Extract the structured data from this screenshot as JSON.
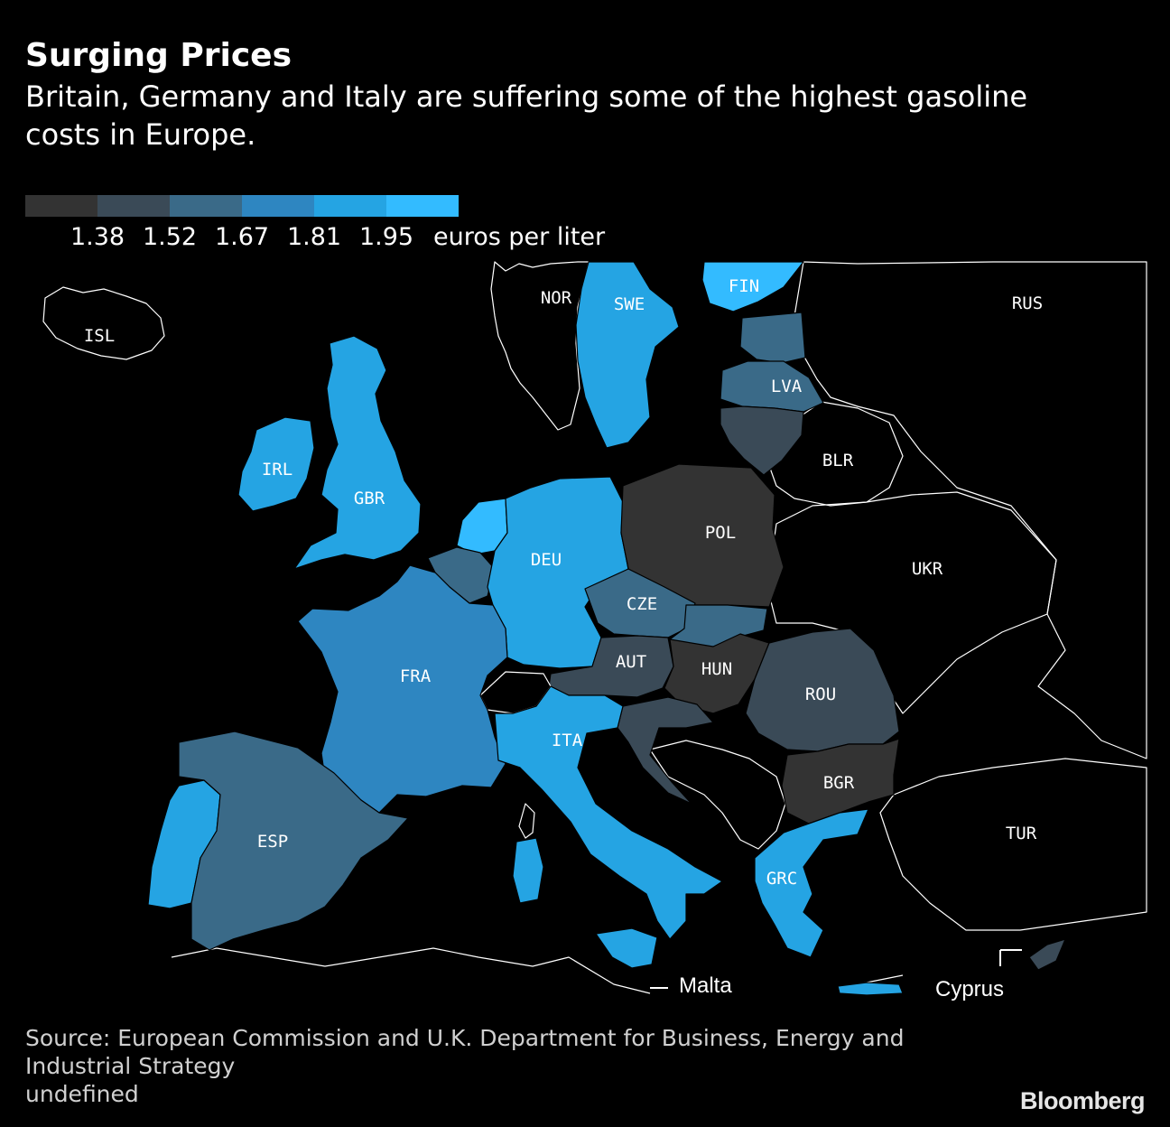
{
  "header": {
    "title": "Surging Prices",
    "subtitle": "Britain, Germany and Italy are suffering some of the highest gasoline costs in Europe."
  },
  "legend": {
    "colors": [
      "#333333",
      "#3a4a57",
      "#3a6a88",
      "#2e86c1",
      "#25a4e3",
      "#33bbff"
    ],
    "breaks": [
      "1.38",
      "1.52",
      "1.67",
      "1.81",
      "1.95"
    ],
    "unit": "euros per liter"
  },
  "map": {
    "countries": [
      {
        "code": "ISL",
        "price_bin": null
      },
      {
        "code": "NOR",
        "price_bin": null
      },
      {
        "code": "SWE",
        "price_bin": 4
      },
      {
        "code": "FIN",
        "price_bin": 5
      },
      {
        "code": "RUS",
        "price_bin": null
      },
      {
        "code": "LVA",
        "price_bin": 2
      },
      {
        "code": "IRL",
        "price_bin": 4
      },
      {
        "code": "GBR",
        "price_bin": 4
      },
      {
        "code": "BLR",
        "price_bin": null
      },
      {
        "code": "POL",
        "price_bin": 0
      },
      {
        "code": "DEU",
        "price_bin": 4
      },
      {
        "code": "UKR",
        "price_bin": null
      },
      {
        "code": "CZE",
        "price_bin": 2
      },
      {
        "code": "AUT",
        "price_bin": 1
      },
      {
        "code": "HUN",
        "price_bin": 0
      },
      {
        "code": "FRA",
        "price_bin": 3
      },
      {
        "code": "ROU",
        "price_bin": 1
      },
      {
        "code": "ITA",
        "price_bin": 4
      },
      {
        "code": "BGR",
        "price_bin": 0
      },
      {
        "code": "ESP",
        "price_bin": 2
      },
      {
        "code": "TUR",
        "price_bin": null
      },
      {
        "code": "GRC",
        "price_bin": 4
      }
    ],
    "insets": {
      "malta": "Malta",
      "cyprus": "Cyprus"
    }
  },
  "footer": {
    "source": "Source: European Commission and U.K. Department for Business, Energy and Industrial Strategy",
    "note": "undefined",
    "brand": "Bloomberg"
  }
}
